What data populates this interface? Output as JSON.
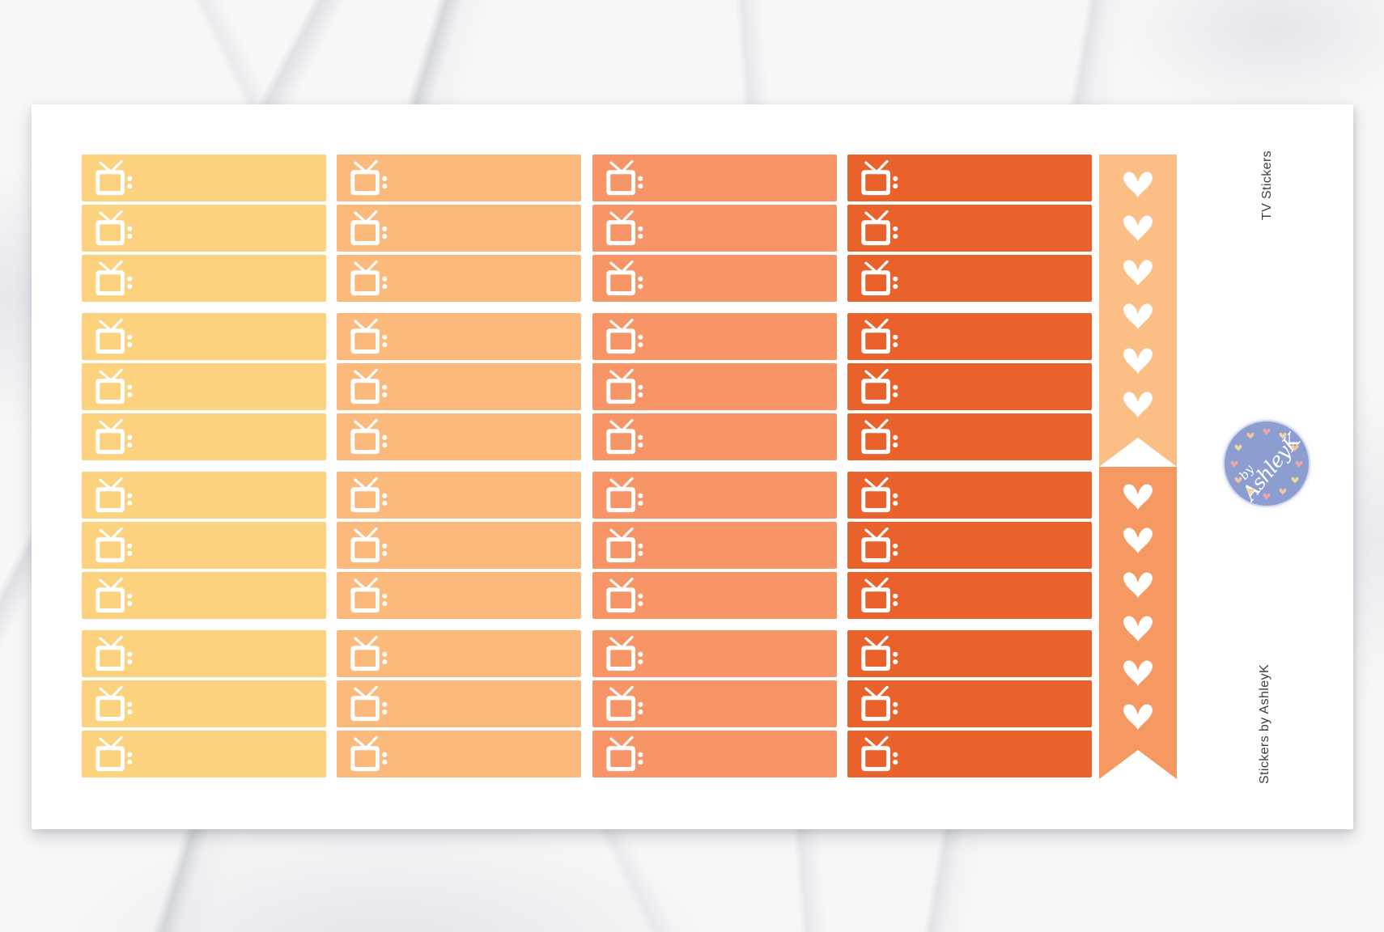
{
  "scene": {
    "backdrop": "white-marble",
    "sheet_color": "#FFFFFF"
  },
  "sheet": {
    "side_label_top": "TV Stickers",
    "side_label_bottom": "Stickers by AshleyK",
    "label_text_color": "#3E3E3E",
    "icon": {
      "name": "tv-icon",
      "color": "#FFFFFF"
    },
    "sticker_columns": [
      {
        "name": "yellow",
        "color": "#FCD27F"
      },
      {
        "name": "light-orange",
        "color": "#FBB97B"
      },
      {
        "name": "orange",
        "color": "#F79566"
      },
      {
        "name": "dark-orange",
        "color": "#E9622B"
      }
    ],
    "groups_per_column": 4,
    "rows_per_group": 3,
    "heart_banner": {
      "heart_color": "#FFFFFF",
      "segments": [
        {
          "color": "#FBBF86",
          "hearts": 6
        },
        {
          "color": "#F69861",
          "hearts": 6
        }
      ]
    },
    "logo": {
      "circle_color": "#8C9DD0",
      "text_color": "#FFFFFF",
      "line1": "by",
      "line2": "AshleyK",
      "accent_heart_colors": [
        "#F0A8B0",
        "#F2D9A0",
        "#F6C39E"
      ]
    }
  }
}
